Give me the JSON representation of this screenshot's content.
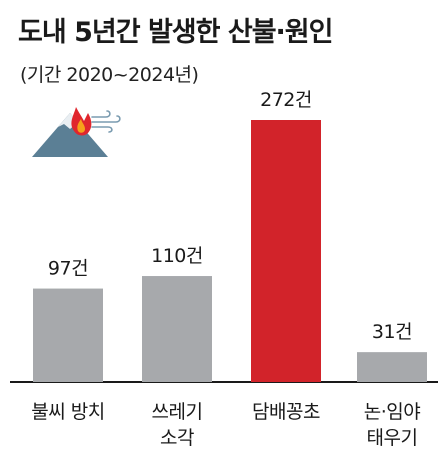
{
  "title": "도내 5년간 발생한 산불·원인",
  "subtitle": "(기간 2020~2024년)",
  "icon": "wildfire-mountain-icon",
  "colors": {
    "bar_default": "#a7a9ac",
    "bar_highlight": "#d2232a",
    "axis": "#1a1a1a"
  },
  "chart_data": {
    "type": "bar",
    "title": "도내 5년간 발생한 산불·원인",
    "subtitle": "(기간 2020~2024년)",
    "categories": [
      "불씨 방치",
      "쓰레기 소각",
      "담배꽁초",
      "논·임야 태우기"
    ],
    "category_lines": [
      [
        "불씨 방치"
      ],
      [
        "쓰레기",
        "소각"
      ],
      [
        "담배꽁초"
      ],
      [
        "논·임야",
        "태우기"
      ]
    ],
    "values": [
      97,
      110,
      272,
      31
    ],
    "data_labels": [
      "97건",
      "110건",
      "272건",
      "31건"
    ],
    "unit": "건",
    "highlight_index": 2,
    "ylim": [
      0,
      300
    ],
    "grid": false,
    "xlabel": "",
    "ylabel": ""
  }
}
